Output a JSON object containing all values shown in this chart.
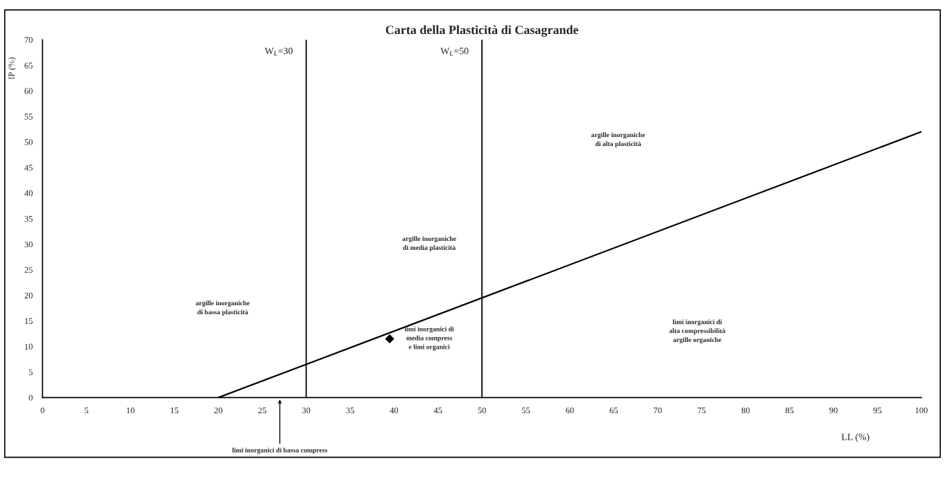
{
  "chart_data": {
    "type": "line",
    "title": "Carta della Plasticità di Casagrande",
    "xlabel": "LL (%)",
    "ylabel": "IP (%)",
    "xlim": [
      0,
      100
    ],
    "xticks": [
      0,
      5,
      10,
      15,
      20,
      25,
      30,
      35,
      40,
      45,
      50,
      55,
      60,
      65,
      70,
      75,
      80,
      85,
      90,
      95,
      100
    ],
    "ylim": [
      0,
      70
    ],
    "yticks": [
      0,
      5,
      10,
      15,
      20,
      25,
      30,
      35,
      40,
      45,
      50,
      55,
      60,
      65,
      70
    ],
    "grid": false,
    "legend": false,
    "series": [
      {
        "color": "#000000",
        "x": [
          20,
          100
        ],
        "values": [
          0,
          52
        ],
        "marker": "none",
        "line_style": "solid"
      },
      {
        "type": "scatter",
        "color": "#000000",
        "x": [
          39.5
        ],
        "values": [
          11.5
        ],
        "marker": "diamond"
      }
    ],
    "ref_lines": [
      {
        "axis": "x",
        "value": 30,
        "label": "W$_{L}$=30",
        "color": "#000000"
      },
      {
        "axis": "x",
        "value": 50,
        "label": "W$_{L}$=50",
        "color": "#000000"
      }
    ],
    "annotations": [
      "argille inorganiche\ndi bassa plasticità",
      "argille inorganiche\ndi media plasticità",
      "argille inorganiche\ndi alta plasticità",
      "limi inorganici di\nmedia compress\ne limi organici",
      "limi inorganici di\nalta compressibilità\nargille organiche",
      "limi inorganici di bassa compress"
    ]
  }
}
